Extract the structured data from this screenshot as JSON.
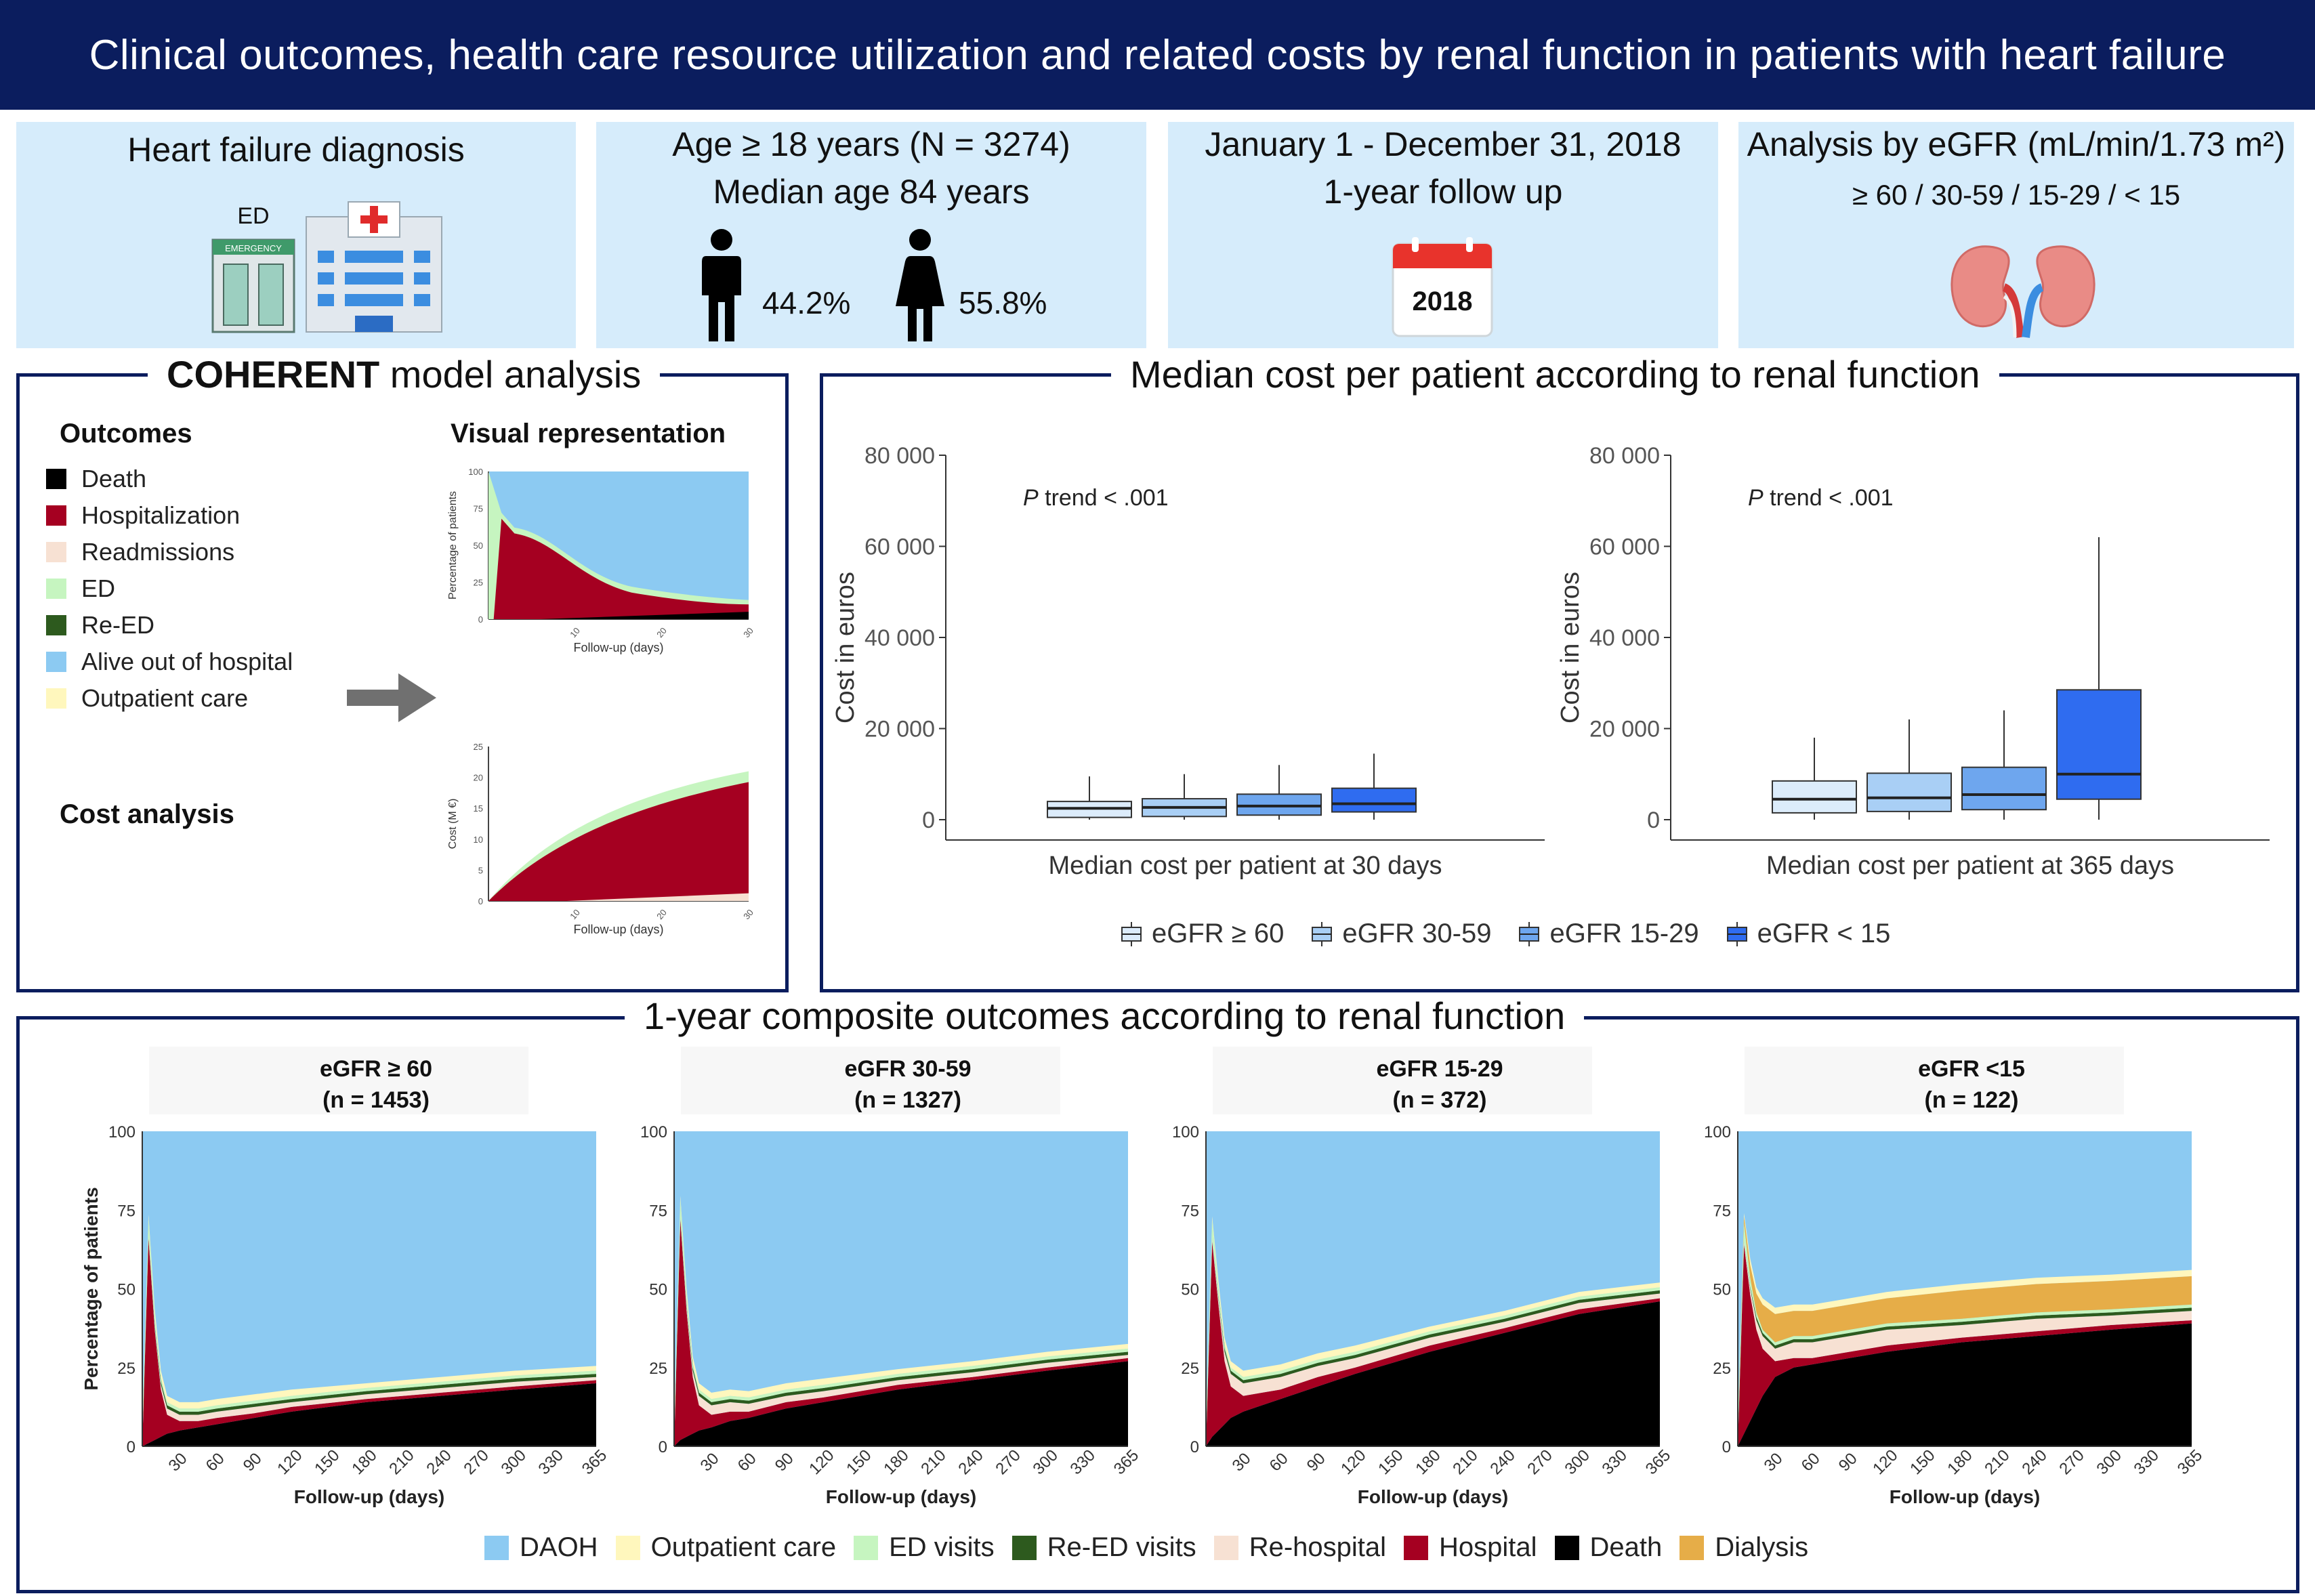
{
  "banner": {
    "title": "Clinical outcomes, health care resource utilization and related costs by renal function in patients with heart failure"
  },
  "top_panels": {
    "p1": {
      "title": "Heart failure diagnosis",
      "ed_label": "ED",
      "sign": "EMERGENCY"
    },
    "p2": {
      "line1": "Age ≥ 18 years (N = 3274)",
      "line2": "Median age 84 years",
      "male_pct": "44.2%",
      "female_pct": "55.8%"
    },
    "p3": {
      "line1": "January 1 - December 31, 2018",
      "line2": "1-year follow up",
      "calendar_year": "2018"
    },
    "p4": {
      "line1": "Analysis by eGFR (mL/min/1.73 m²)",
      "line2": "≥ 60 / 30-59 / 15-29 / < 15"
    }
  },
  "coherent": {
    "title_bold": "COHERENT",
    "title_rest": " model analysis",
    "outcomes_heading": "Outcomes",
    "visual_heading": "Visual representation",
    "cost_heading": "Cost analysis",
    "outcomes": [
      {
        "label": "Death",
        "color": "#000000"
      },
      {
        "label": "Hospitalization",
        "color": "#a50021"
      },
      {
        "label": "Readmissions",
        "color": "#f7e1d3"
      },
      {
        "label": "ED",
        "color": "#c6f5c0"
      },
      {
        "label": "Re-ED",
        "color": "#2d5a1e"
      },
      {
        "label": "Alive out of hospital",
        "color": "#8ccaf2"
      },
      {
        "label": "Outpatient care",
        "color": "#fff7bd"
      }
    ],
    "mini1": {
      "ylabel": "Percentage of patients",
      "xlabel": "Follow-up (days)",
      "yticks": [
        "0",
        "25",
        "50",
        "75",
        "100"
      ],
      "xticks": [
        "10",
        "20",
        "30"
      ]
    },
    "mini2": {
      "ylabel": "Cost (M €)",
      "xlabel": "Follow-up (days)",
      "yticks": [
        "0",
        "5",
        "10",
        "15",
        "20",
        "25"
      ],
      "xticks": [
        "10",
        "20",
        "30"
      ]
    }
  },
  "cost_section": {
    "title": "Median cost per patient according to renal function"
  },
  "outcome_section": {
    "title": "1-year composite outcomes according to renal function"
  },
  "chart_data": [
    {
      "type": "box",
      "title": "Median cost per patient at 30 days",
      "xlabel": "Median cost per patient at 30 days",
      "ylabel": "Cost in euros",
      "ylim": [
        0,
        80000
      ],
      "yticks": [
        "0",
        "20 000",
        "40 000",
        "60 000",
        "80 000"
      ],
      "annotation_italic": "P",
      "annotation_rest": " trend < .001",
      "series": [
        {
          "name": "eGFR ≥ 60",
          "color": "#dcecfb",
          "lower_whisker": 0,
          "q1": 500,
          "median": 2500,
          "q3": 4000,
          "upper_whisker": 9500
        },
        {
          "name": "eGFR 30-59",
          "color": "#a9cff5",
          "lower_whisker": 0,
          "q1": 700,
          "median": 2700,
          "q3": 4600,
          "upper_whisker": 10000
        },
        {
          "name": "eGFR 15-29",
          "color": "#6ea6ee",
          "lower_whisker": 0,
          "q1": 1000,
          "median": 3000,
          "q3": 5600,
          "upper_whisker": 12000
        },
        {
          "name": "eGFR < 15",
          "color": "#2f6cf0",
          "lower_whisker": 0,
          "q1": 1700,
          "median": 3500,
          "q3": 6900,
          "upper_whisker": 14500
        }
      ]
    },
    {
      "type": "box",
      "title": "Median cost per patient at 365 days",
      "xlabel": "Median cost per patient at 365 days",
      "ylabel": "Cost in euros",
      "ylim": [
        0,
        80000
      ],
      "yticks": [
        "0",
        "20 000",
        "40 000",
        "60 000",
        "80 000"
      ],
      "annotation_italic": "P",
      "annotation_rest": " trend < .001",
      "series": [
        {
          "name": "eGFR ≥ 60",
          "color": "#dcecfb",
          "lower_whisker": 0,
          "q1": 1500,
          "median": 4500,
          "q3": 8500,
          "upper_whisker": 18000
        },
        {
          "name": "eGFR 30-59",
          "color": "#a9cff5",
          "lower_whisker": 0,
          "q1": 1800,
          "median": 4800,
          "q3": 10200,
          "upper_whisker": 22000
        },
        {
          "name": "eGFR 15-29",
          "color": "#6ea6ee",
          "lower_whisker": 0,
          "q1": 2200,
          "median": 5500,
          "q3": 11500,
          "upper_whisker": 24000
        },
        {
          "name": "eGFR < 15",
          "color": "#2f6cf0",
          "lower_whisker": 0,
          "q1": 4500,
          "median": 10000,
          "q3": 28500,
          "upper_whisker": 62000
        }
      ]
    },
    {
      "type": "area",
      "title": "eGFR ≥ 60",
      "subtitle": "(n = 1453)",
      "ylabel": "Percentage of patients",
      "xlabel": "Follow-up (days)",
      "ylim": [
        0,
        100
      ],
      "xlim": [
        0,
        365
      ],
      "yticks": [
        "0",
        "25",
        "50",
        "75",
        "100"
      ],
      "xticks": [
        "30",
        "60",
        "90",
        "120",
        "150",
        "180",
        "210",
        "240",
        "270",
        "300",
        "330",
        "365"
      ],
      "x": [
        0,
        5,
        10,
        15,
        20,
        30,
        45,
        60,
        90,
        120,
        180,
        240,
        300,
        365
      ],
      "series": [
        {
          "name": "Death",
          "values": [
            0,
            1,
            2,
            3,
            4,
            5,
            6,
            7,
            9,
            11,
            14,
            16,
            18,
            20
          ]
        },
        {
          "name": "Hospital",
          "values": [
            0,
            65,
            35,
            15,
            6,
            3,
            2,
            2,
            1.5,
            1.5,
            1,
            1,
            1,
            1
          ]
        },
        {
          "name": "Re-hospital",
          "values": [
            0,
            0.5,
            1,
            1.5,
            2,
            2,
            2,
            2,
            2,
            1.5,
            1.5,
            1.5,
            1.5,
            1
          ]
        },
        {
          "name": "Re-ED visits",
          "values": [
            0,
            0,
            0.5,
            1,
            1,
            1,
            1,
            1,
            1,
            1,
            1,
            1,
            1,
            1
          ]
        },
        {
          "name": "ED visits",
          "values": [
            8,
            6,
            3,
            1.5,
            1,
            1,
            1,
            1,
            1,
            1,
            1,
            1,
            1,
            1
          ]
        },
        {
          "name": "Outpatient care",
          "values": [
            0,
            1,
            2,
            2,
            2,
            2,
            2,
            2,
            2,
            2,
            1.5,
            1.5,
            1.5,
            1.5
          ]
        },
        {
          "name": "Dialysis",
          "values": [
            0,
            0,
            0,
            0,
            0,
            0,
            0,
            0,
            0,
            0,
            0,
            0,
            0,
            0
          ]
        }
      ]
    },
    {
      "type": "area",
      "title": "eGFR 30-59",
      "subtitle": "(n = 1327)",
      "ylim": [
        0,
        100
      ],
      "xlim": [
        0,
        365
      ],
      "yticks": [
        "0",
        "25",
        "50",
        "75",
        "100"
      ],
      "xticks": [
        "30",
        "60",
        "90",
        "120",
        "150",
        "180",
        "210",
        "240",
        "270",
        "300",
        "330",
        "365"
      ],
      "xlabel": "Follow-up (days)",
      "x": [
        0,
        5,
        10,
        15,
        20,
        30,
        45,
        60,
        90,
        120,
        180,
        240,
        300,
        365
      ],
      "series": [
        {
          "name": "Death",
          "values": [
            0,
            2,
            3,
            4,
            5,
            6,
            8,
            9,
            12,
            14,
            18,
            21,
            24,
            27
          ]
        },
        {
          "name": "Hospital",
          "values": [
            0,
            70,
            40,
            18,
            8,
            4,
            3,
            2,
            2,
            1.5,
            1.5,
            1,
            1,
            1
          ]
        },
        {
          "name": "Re-hospital",
          "values": [
            0,
            0.5,
            1.5,
            2,
            3,
            3,
            3,
            2.5,
            2,
            2,
            1.5,
            1.5,
            1.5,
            1
          ]
        },
        {
          "name": "Re-ED visits",
          "values": [
            0,
            0,
            0.5,
            1,
            1,
            1,
            1,
            1,
            1,
            1,
            1,
            1,
            1,
            1
          ]
        },
        {
          "name": "ED visits",
          "values": [
            8,
            6,
            3,
            1.5,
            1,
            1,
            1,
            1,
            1,
            1,
            1,
            1,
            1,
            1
          ]
        },
        {
          "name": "Outpatient care",
          "values": [
            0,
            1,
            2,
            2,
            2,
            2,
            2,
            2,
            2,
            2,
            1.5,
            1.5,
            1.5,
            1.5
          ]
        },
        {
          "name": "Dialysis",
          "values": [
            0,
            0,
            0,
            0,
            0,
            0,
            0,
            0,
            0,
            0,
            0,
            0,
            0,
            0
          ]
        }
      ]
    },
    {
      "type": "area",
      "title": "eGFR 15-29",
      "subtitle": "(n = 372)",
      "ylim": [
        0,
        100
      ],
      "xlim": [
        0,
        365
      ],
      "yticks": [
        "0",
        "25",
        "50",
        "75",
        "100"
      ],
      "xticks": [
        "30",
        "60",
        "90",
        "120",
        "150",
        "180",
        "210",
        "240",
        "270",
        "300",
        "330",
        "365"
      ],
      "xlabel": "Follow-up (days)",
      "x": [
        0,
        5,
        10,
        15,
        20,
        30,
        45,
        60,
        90,
        120,
        180,
        240,
        300,
        365
      ],
      "series": [
        {
          "name": "Death",
          "values": [
            0,
            3,
            5,
            7,
            9,
            11,
            13,
            15,
            19,
            23,
            30,
            36,
            42,
            46
          ]
        },
        {
          "name": "Hospital",
          "values": [
            0,
            62,
            40,
            20,
            10,
            5,
            4,
            3,
            3,
            2,
            2,
            1.5,
            1.5,
            1
          ]
        },
        {
          "name": "Re-hospital",
          "values": [
            0,
            1,
            2,
            3,
            4,
            4,
            4,
            4,
            3.5,
            3,
            2.5,
            2,
            2,
            1.5
          ]
        },
        {
          "name": "Re-ED visits",
          "values": [
            0,
            0,
            0.5,
            1,
            1,
            1,
            1,
            1,
            1,
            1,
            1,
            1,
            1,
            1
          ]
        },
        {
          "name": "ED visits",
          "values": [
            8,
            6,
            3,
            1.5,
            1,
            1,
            1,
            1,
            1,
            1,
            1,
            1,
            1,
            1
          ]
        },
        {
          "name": "Outpatient care",
          "values": [
            0,
            1,
            2,
            2,
            2,
            2,
            2,
            2,
            2,
            2,
            1.5,
            1.5,
            1.5,
            1.5
          ]
        },
        {
          "name": "Dialysis",
          "values": [
            0,
            0,
            0,
            0,
            0,
            0,
            0,
            0,
            0,
            0,
            0,
            0,
            0,
            0
          ]
        }
      ]
    },
    {
      "type": "area",
      "title": "eGFR <15",
      "subtitle": "(n = 122)",
      "ylim": [
        0,
        100
      ],
      "xlim": [
        0,
        365
      ],
      "yticks": [
        "0",
        "25",
        "50",
        "75",
        "100"
      ],
      "xticks": [
        "30",
        "60",
        "90",
        "120",
        "150",
        "180",
        "210",
        "240",
        "270",
        "300",
        "330",
        "365"
      ],
      "xlabel": "Follow-up (days)",
      "x": [
        0,
        5,
        10,
        15,
        20,
        30,
        45,
        60,
        90,
        120,
        180,
        240,
        300,
        365
      ],
      "series": [
        {
          "name": "Death",
          "values": [
            0,
            4,
            8,
            12,
            16,
            22,
            25,
            26,
            28,
            30,
            33,
            35,
            37,
            39
          ]
        },
        {
          "name": "Hospital",
          "values": [
            0,
            60,
            40,
            25,
            15,
            5,
            3,
            2,
            2,
            2,
            1.5,
            1.5,
            1.5,
            1
          ]
        },
        {
          "name": "Re-hospital",
          "values": [
            0,
            1,
            2,
            3,
            4,
            4,
            5,
            5,
            5,
            5,
            4,
            4,
            3,
            3
          ]
        },
        {
          "name": "Re-ED visits",
          "values": [
            0,
            0,
            0.5,
            1,
            1,
            1,
            1,
            1,
            1,
            1,
            1,
            1,
            1,
            1
          ]
        },
        {
          "name": "ED visits",
          "values": [
            8,
            6,
            3,
            1.5,
            1,
            1,
            1,
            1,
            1,
            1,
            1,
            1,
            1,
            1
          ]
        },
        {
          "name": "Outpatient care",
          "values": [
            0,
            1,
            2,
            2,
            2,
            2,
            2,
            2,
            2,
            2,
            2,
            2,
            2,
            2
          ]
        },
        {
          "name": "Dialysis",
          "values": [
            0,
            2,
            4,
            6,
            8,
            9,
            8,
            8,
            8,
            8,
            9,
            9,
            9,
            9
          ]
        }
      ]
    }
  ],
  "box_legend": [
    {
      "label": "eGFR ≥ 60",
      "color": "#dcecfb"
    },
    {
      "label": "eGFR 30-59",
      "color": "#a9cff5"
    },
    {
      "label": "eGFR 15-29",
      "color": "#6ea6ee"
    },
    {
      "label": "eGFR < 15",
      "color": "#2f6cf0"
    }
  ],
  "area_legend": [
    {
      "label": "DAOH",
      "color": "#8ccaf2"
    },
    {
      "label": "Outpatient care",
      "color": "#fff7bd"
    },
    {
      "label": "ED visits",
      "color": "#c6f5c0"
    },
    {
      "label": "Re-ED visits",
      "color": "#2d5a1e"
    },
    {
      "label": "Re-hospital",
      "color": "#f7e1d3"
    },
    {
      "label": "Hospital",
      "color": "#a50021"
    },
    {
      "label": "Death",
      "color": "#000000"
    },
    {
      "label": "Dialysis",
      "color": "#e6ad48"
    }
  ],
  "area_colors": {
    "Death": "#000000",
    "Hospital": "#a50021",
    "Re-hospital": "#f7e1d3",
    "Re-ED visits": "#2d5a1e",
    "ED visits": "#c6f5c0",
    "Outpatient care": "#fff7bd",
    "Dialysis": "#e6ad48",
    "DAOH": "#8ccaf2"
  }
}
